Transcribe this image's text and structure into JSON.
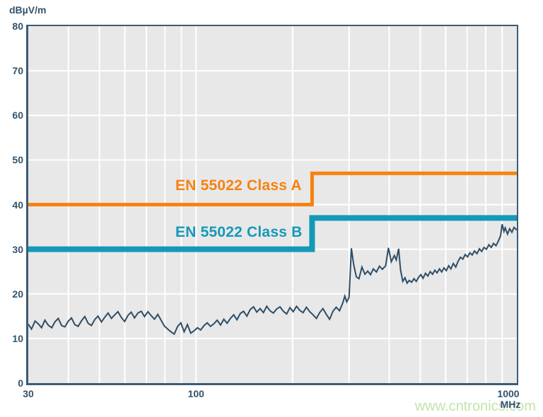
{
  "header": {
    "y_unit": "dBµV/m"
  },
  "axis": {
    "x_unit": "MHz"
  },
  "watermark": {
    "text": "www.cntronics.com",
    "color": "#C3E4A8"
  },
  "colors": {
    "plot_background": "#E8E8E8",
    "grid": "#FFFFFF",
    "frame": "#3C5B75",
    "tick_text": "#33536B"
  },
  "chart_data": {
    "type": "line",
    "title": "",
    "xlabel": "MHz",
    "ylabel": "dBµV/m",
    "x_scale": "log",
    "x_range": [
      30,
      1000
    ],
    "y_range": [
      0,
      80
    ],
    "grid": true,
    "y_ticks": [
      0,
      10,
      20,
      30,
      40,
      50,
      60,
      70,
      80
    ],
    "x_ticks": [
      {
        "value": 30,
        "label": "30"
      },
      {
        "value": 100,
        "label": "100"
      },
      {
        "value": 1000,
        "label": "1000"
      }
    ],
    "x_gridlines": [
      30,
      40,
      50,
      60,
      70,
      80,
      90,
      100,
      200,
      300,
      400,
      500,
      600,
      700,
      800,
      900,
      1000
    ],
    "series": [
      {
        "name": "en-55022-class-a-limit",
        "kind": "limit-step",
        "label": "EN 55022 Class A",
        "color": "#F6820F",
        "stroke_width": 5,
        "points": [
          [
            30,
            40
          ],
          [
            230,
            40
          ],
          [
            230,
            47
          ],
          [
            1000,
            47
          ]
        ]
      },
      {
        "name": "en-55022-class-b-limit",
        "kind": "limit-step",
        "label": "EN 55022 Class B",
        "color": "#1499B7",
        "stroke_width": 8,
        "points": [
          [
            30,
            30
          ],
          [
            230,
            30
          ],
          [
            230,
            37
          ],
          [
            1000,
            37
          ]
        ]
      },
      {
        "name": "measured-emissions",
        "kind": "trace",
        "label": "",
        "color": "#2E4D66",
        "stroke_width": 2,
        "points": [
          [
            30,
            13.2
          ],
          [
            30.7,
            12.1
          ],
          [
            31.5,
            13.9
          ],
          [
            32.2,
            13.3
          ],
          [
            33,
            12.4
          ],
          [
            33.8,
            14.1
          ],
          [
            34.6,
            13
          ],
          [
            35.5,
            12.4
          ],
          [
            36.3,
            13.7
          ],
          [
            37.2,
            14.5
          ],
          [
            38.1,
            12.9
          ],
          [
            39,
            12.6
          ],
          [
            40,
            13.9
          ],
          [
            40.9,
            14.6
          ],
          [
            41.9,
            13.1
          ],
          [
            42.9,
            12.7
          ],
          [
            44,
            14
          ],
          [
            45,
            14.9
          ],
          [
            46.1,
            13.4
          ],
          [
            47.2,
            12.9
          ],
          [
            48.4,
            14.3
          ],
          [
            49.5,
            15
          ],
          [
            50.7,
            13.7
          ],
          [
            52,
            14.8
          ],
          [
            53.2,
            15.7
          ],
          [
            54.5,
            14.5
          ],
          [
            55.8,
            15.3
          ],
          [
            57.1,
            16
          ],
          [
            58.5,
            14.7
          ],
          [
            59.9,
            13.8
          ],
          [
            61.4,
            15.2
          ],
          [
            62.8,
            15.9
          ],
          [
            64.3,
            14.6
          ],
          [
            65.9,
            15.7
          ],
          [
            67.5,
            16.1
          ],
          [
            69.1,
            14.9
          ],
          [
            70.8,
            16
          ],
          [
            72.5,
            15.1
          ],
          [
            74.2,
            14.3
          ],
          [
            76,
            15.4
          ],
          [
            77.8,
            14.1
          ],
          [
            79.7,
            12.8
          ],
          [
            81.6,
            12.1
          ],
          [
            83.5,
            11.5
          ],
          [
            85.5,
            11
          ],
          [
            87.6,
            12.7
          ],
          [
            89.7,
            13.5
          ],
          [
            91.8,
            11.5
          ],
          [
            94,
            13.1
          ],
          [
            96.3,
            11.2
          ],
          [
            98.6,
            11.7
          ],
          [
            101,
            12.4
          ],
          [
            103.4,
            11.9
          ],
          [
            105.9,
            12.9
          ],
          [
            108.4,
            13.5
          ],
          [
            111,
            12.7
          ],
          [
            113.7,
            13.3
          ],
          [
            116.4,
            14.1
          ],
          [
            119.2,
            13
          ],
          [
            122.1,
            14.3
          ],
          [
            125,
            13.4
          ],
          [
            128,
            14.5
          ],
          [
            131.1,
            15.3
          ],
          [
            134.2,
            14.2
          ],
          [
            137.4,
            15.6
          ],
          [
            140.7,
            16.1
          ],
          [
            144.1,
            15
          ],
          [
            147.6,
            16.5
          ],
          [
            151.1,
            17.1
          ],
          [
            154.7,
            15.9
          ],
          [
            158.4,
            16.7
          ],
          [
            162.2,
            15.8
          ],
          [
            166.1,
            17.2
          ],
          [
            170.1,
            16.2
          ],
          [
            174.2,
            15.7
          ],
          [
            178.4,
            16.6
          ],
          [
            182.7,
            17.1
          ],
          [
            187.1,
            16.1
          ],
          [
            191.6,
            15.5
          ],
          [
            196.2,
            16.9
          ],
          [
            200.9,
            16
          ],
          [
            205.7,
            17.2
          ],
          [
            210.6,
            16.3
          ],
          [
            215.7,
            15.8
          ],
          [
            220.9,
            17
          ],
          [
            226.2,
            16
          ],
          [
            231.6,
            15.3
          ],
          [
            237.2,
            14.5
          ],
          [
            242.9,
            15.8
          ],
          [
            248.7,
            16.7
          ],
          [
            254.7,
            15.4
          ],
          [
            260.8,
            14.3
          ],
          [
            267.1,
            16.1
          ],
          [
            273.5,
            17
          ],
          [
            280,
            16.2
          ],
          [
            286.8,
            18
          ],
          [
            291,
            19.5
          ],
          [
            295,
            18.2
          ],
          [
            300,
            19.2
          ],
          [
            305,
            30.2
          ],
          [
            310,
            26.6
          ],
          [
            316,
            23.8
          ],
          [
            322,
            23.4
          ],
          [
            329,
            26
          ],
          [
            336,
            24.4
          ],
          [
            343,
            25.1
          ],
          [
            350,
            24.3
          ],
          [
            357,
            25.6
          ],
          [
            365,
            24.9
          ],
          [
            373,
            26.2
          ],
          [
            381,
            25.5
          ],
          [
            390,
            26.3
          ],
          [
            398,
            30.3
          ],
          [
            406,
            27.2
          ],
          [
            415,
            28.6
          ],
          [
            421,
            27.6
          ],
          [
            428,
            30.1
          ],
          [
            434,
            25.4
          ],
          [
            441,
            22.8
          ],
          [
            448,
            23.6
          ],
          [
            455,
            22.4
          ],
          [
            462,
            23
          ],
          [
            470,
            22.6
          ],
          [
            478,
            23.4
          ],
          [
            486,
            22.8
          ],
          [
            494,
            23.7
          ],
          [
            502,
            24.3
          ],
          [
            510,
            23.5
          ],
          [
            519,
            24.6
          ],
          [
            528,
            24
          ],
          [
            537,
            25
          ],
          [
            546,
            24.4
          ],
          [
            555,
            25.3
          ],
          [
            564,
            24.7
          ],
          [
            574,
            25.6
          ],
          [
            583,
            24.9
          ],
          [
            593,
            25.8
          ],
          [
            603,
            25.2
          ],
          [
            613,
            26.3
          ],
          [
            623,
            25.6
          ],
          [
            634,
            26.8
          ],
          [
            645,
            26
          ],
          [
            656,
            27.3
          ],
          [
            667,
            28.2
          ],
          [
            679,
            27.8
          ],
          [
            690,
            28.8
          ],
          [
            702,
            28.3
          ],
          [
            714,
            29.2
          ],
          [
            726,
            28.7
          ],
          [
            738,
            29.6
          ],
          [
            751,
            29
          ],
          [
            764,
            30.1
          ],
          [
            777,
            29.5
          ],
          [
            790,
            30.4
          ],
          [
            804,
            30
          ],
          [
            818,
            31
          ],
          [
            832,
            30.4
          ],
          [
            846,
            31.3
          ],
          [
            861,
            30.8
          ],
          [
            875,
            31.8
          ],
          [
            890,
            33
          ],
          [
            900,
            35.6
          ],
          [
            912,
            34
          ],
          [
            920,
            34.8
          ],
          [
            935,
            33.4
          ],
          [
            950,
            34.6
          ],
          [
            965,
            33.8
          ],
          [
            980,
            34.9
          ],
          [
            1000,
            34.3
          ]
        ]
      }
    ]
  }
}
